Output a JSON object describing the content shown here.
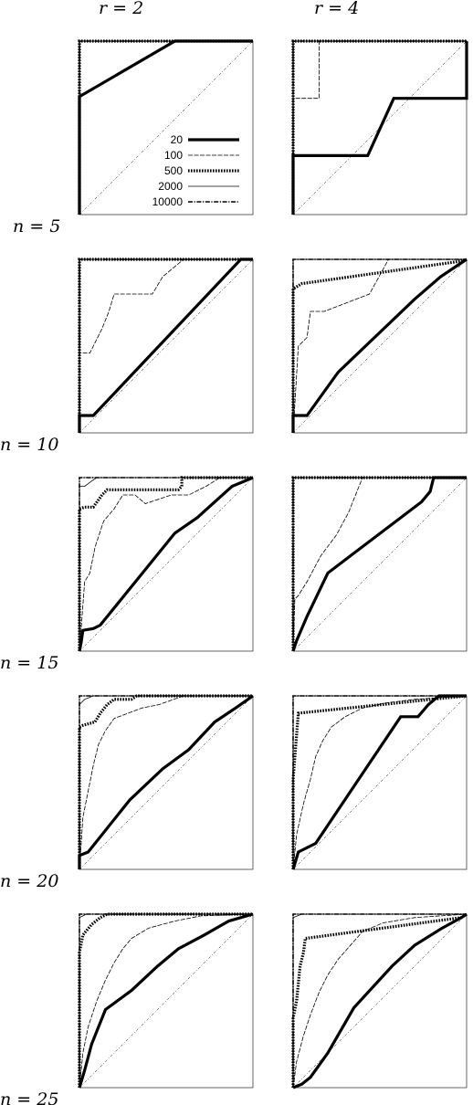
{
  "column_labels": [
    "r = 2",
    "r = 4"
  ],
  "row_labels": [
    "n = 5",
    "n = 10",
    "n = 15",
    "n = 20",
    "n = 25"
  ],
  "legend_entries": [
    {
      "label": "20",
      "style": "thick-solid"
    },
    {
      "label": "100",
      "style": "thin-dashed"
    },
    {
      "label": "500",
      "style": "thick-dotted"
    },
    {
      "label": "2000",
      "style": "thin-solid"
    },
    {
      "label": "10000",
      "style": "dash-dot"
    }
  ],
  "colors": {
    "line": "#000000",
    "background": "#ffffff"
  },
  "chart_data": [
    {
      "type": "line",
      "panel": "r=2,n=5",
      "xlim": [
        0,
        1
      ],
      "ylim": [
        0,
        1
      ],
      "series": [
        {
          "name": "20",
          "x": [
            0,
            0,
            0.55,
            1
          ],
          "y": [
            0,
            0.68,
            1,
            1
          ]
        },
        {
          "name": "100",
          "x": [
            0,
            0,
            1
          ],
          "y": [
            0,
            1,
            1
          ]
        },
        {
          "name": "500",
          "x": [
            0,
            0,
            1
          ],
          "y": [
            0,
            1,
            1
          ]
        },
        {
          "name": "2000",
          "x": [
            0,
            0,
            1
          ],
          "y": [
            0,
            1,
            1
          ]
        },
        {
          "name": "10000",
          "x": [
            0,
            0,
            1
          ],
          "y": [
            0,
            1,
            1
          ]
        }
      ]
    },
    {
      "type": "line",
      "panel": "r=4,n=5",
      "xlim": [
        0,
        1
      ],
      "ylim": [
        0,
        1
      ],
      "series": [
        {
          "name": "20",
          "x": [
            0,
            0,
            0.43,
            0.58,
            1,
            1
          ],
          "y": [
            0,
            0.34,
            0.34,
            0.67,
            0.67,
            1
          ]
        },
        {
          "name": "100",
          "x": [
            0,
            0,
            0.15,
            0.15,
            1
          ],
          "y": [
            0,
            0.67,
            0.67,
            1,
            1
          ]
        },
        {
          "name": "500",
          "x": [
            0,
            0,
            1
          ],
          "y": [
            0,
            1,
            1
          ]
        },
        {
          "name": "2000",
          "x": [
            0,
            0,
            1
          ],
          "y": [
            0,
            1,
            1
          ]
        },
        {
          "name": "10000",
          "x": [
            0,
            0,
            1
          ],
          "y": [
            0,
            1,
            1
          ]
        }
      ]
    },
    {
      "type": "line",
      "panel": "r=2,n=10",
      "xlim": [
        0,
        1
      ],
      "ylim": [
        0,
        1
      ],
      "series": [
        {
          "name": "20",
          "x": [
            0,
            0,
            0.08,
            0.93,
            1
          ],
          "y": [
            0,
            0.1,
            0.1,
            1,
            1
          ]
        },
        {
          "name": "100",
          "x": [
            0,
            0,
            0.06,
            0.08,
            0.13,
            0.17,
            0.2,
            0.42,
            0.48,
            0.6,
            1
          ],
          "y": [
            0,
            0.46,
            0.46,
            0.5,
            0.6,
            0.7,
            0.8,
            0.8,
            0.9,
            1,
            1
          ]
        },
        {
          "name": "500",
          "x": [
            0,
            0,
            1
          ],
          "y": [
            0,
            1,
            1
          ]
        },
        {
          "name": "2000",
          "x": [
            0,
            0,
            1
          ],
          "y": [
            0,
            1,
            1
          ]
        },
        {
          "name": "10000",
          "x": [
            0,
            0,
            1
          ],
          "y": [
            0,
            1,
            1
          ]
        }
      ]
    },
    {
      "type": "line",
      "panel": "r=4,n=10",
      "xlim": [
        0,
        1
      ],
      "ylim": [
        0,
        1
      ],
      "series": [
        {
          "name": "20",
          "x": [
            0,
            0,
            0.08,
            0.26,
            0.7,
            0.85,
            1
          ],
          "y": [
            0,
            0.1,
            0.1,
            0.35,
            0.77,
            0.9,
            1
          ]
        },
        {
          "name": "100",
          "x": [
            0,
            0.03,
            0.08,
            0.1,
            0.18,
            0.44,
            0.55,
            1
          ],
          "y": [
            0,
            0.5,
            0.55,
            0.7,
            0.7,
            0.8,
            1,
            1
          ]
        },
        {
          "name": "500",
          "x": [
            0,
            0,
            0.05,
            0.97,
            1
          ],
          "y": [
            0,
            0.83,
            0.86,
            0.99,
            1
          ]
        },
        {
          "name": "2000",
          "x": [
            0,
            0,
            0.55,
            1
          ],
          "y": [
            0,
            1,
            1,
            1
          ]
        },
        {
          "name": "10000",
          "x": [
            0,
            0,
            1
          ],
          "y": [
            0,
            1,
            1
          ]
        }
      ]
    },
    {
      "type": "line",
      "panel": "r=2,n=15",
      "xlim": [
        0,
        1
      ],
      "ylim": [
        0,
        1
      ],
      "series": [
        {
          "name": "20",
          "x": [
            0,
            0.01,
            0.02,
            0.08,
            0.12,
            0.55,
            0.68,
            0.78,
            0.88,
            1
          ],
          "y": [
            0,
            0.05,
            0.12,
            0.13,
            0.15,
            0.68,
            0.77,
            0.86,
            0.95,
            1
          ]
        },
        {
          "name": "100",
          "x": [
            0,
            0.03,
            0.06,
            0.09,
            0.14,
            0.2,
            0.25,
            0.32,
            0.38,
            0.53,
            0.63,
            0.73,
            0.81,
            1
          ],
          "y": [
            0,
            0.4,
            0.45,
            0.6,
            0.75,
            0.82,
            0.9,
            0.9,
            0.85,
            0.9,
            0.9,
            0.95,
            1,
            1
          ]
        },
        {
          "name": "500",
          "x": [
            0,
            0,
            0.03,
            0.08,
            0.13,
            0.16,
            0.57,
            0.59,
            0.59,
            1
          ],
          "y": [
            0,
            0.82,
            0.83,
            0.83,
            0.9,
            0.93,
            0.93,
            0.95,
            1,
            1
          ]
        },
        {
          "name": "2000",
          "x": [
            0,
            0,
            0.03,
            0.07,
            0.1,
            1
          ],
          "y": [
            0,
            0.95,
            0.95,
            0.98,
            1,
            1
          ]
        },
        {
          "name": "10000",
          "x": [
            0,
            0,
            1
          ],
          "y": [
            0,
            1,
            1
          ]
        }
      ]
    },
    {
      "type": "line",
      "panel": "r=4,n=15",
      "xlim": [
        0,
        1
      ],
      "ylim": [
        0,
        1
      ],
      "series": [
        {
          "name": "20",
          "x": [
            0,
            0.02,
            0.08,
            0.2,
            0.74,
            0.79,
            0.81,
            1
          ],
          "y": [
            0,
            0.06,
            0.2,
            0.45,
            0.86,
            0.92,
            1,
            1
          ]
        },
        {
          "name": "100",
          "x": [
            0,
            0.01,
            0.03,
            0.08,
            0.16,
            0.25,
            0.32,
            0.4,
            1
          ],
          "y": [
            0,
            0.3,
            0.32,
            0.4,
            0.55,
            0.67,
            0.8,
            1,
            1
          ]
        },
        {
          "name": "500",
          "x": [
            0,
            0,
            1
          ],
          "y": [
            0,
            1,
            1
          ]
        },
        {
          "name": "2000",
          "x": [
            0,
            0,
            1
          ],
          "y": [
            0,
            1,
            1
          ]
        },
        {
          "name": "10000",
          "x": [
            0,
            0,
            1
          ],
          "y": [
            0,
            1,
            1
          ]
        }
      ]
    },
    {
      "type": "line",
      "panel": "r=2,n=20",
      "xlim": [
        0,
        1
      ],
      "ylim": [
        0,
        1
      ],
      "series": [
        {
          "name": "20",
          "x": [
            0,
            0,
            0.05,
            0.29,
            0.48,
            0.63,
            0.78,
            0.9,
            1
          ],
          "y": [
            0,
            0.08,
            0.1,
            0.4,
            0.58,
            0.69,
            0.85,
            0.93,
            1
          ]
        },
        {
          "name": "100",
          "x": [
            0,
            0.02,
            0.05,
            0.08,
            0.11,
            0.15,
            0.2,
            0.28,
            0.36,
            0.46,
            0.6,
            1
          ],
          "y": [
            0,
            0.3,
            0.45,
            0.6,
            0.72,
            0.8,
            0.87,
            0.9,
            0.93,
            0.95,
            1,
            1
          ]
        },
        {
          "name": "500",
          "x": [
            0,
            0,
            0.02,
            0.09,
            0.12,
            0.16,
            0.2,
            0.3,
            0.33,
            1
          ],
          "y": [
            0,
            0.82,
            0.83,
            0.85,
            0.9,
            0.95,
            0.98,
            0.98,
            1,
            1
          ]
        },
        {
          "name": "2000",
          "x": [
            0,
            0,
            0.03,
            0.08,
            1
          ],
          "y": [
            0,
            0.95,
            0.98,
            1,
            1
          ]
        },
        {
          "name": "10000",
          "x": [
            0,
            0,
            1
          ],
          "y": [
            0,
            1,
            1
          ]
        }
      ]
    },
    {
      "type": "line",
      "panel": "r=4,n=20",
      "xlim": [
        0,
        1
      ],
      "ylim": [
        0,
        1
      ],
      "series": [
        {
          "name": "20",
          "x": [
            0,
            0.03,
            0.13,
            0.62,
            0.72,
            0.78,
            0.84,
            1
          ],
          "y": [
            0,
            0.1,
            0.15,
            0.88,
            0.88,
            0.95,
            1,
            1
          ]
        },
        {
          "name": "100",
          "x": [
            0,
            0.02,
            0.06,
            0.1,
            0.13,
            0.17,
            0.22,
            0.3,
            0.4,
            0.54,
            0.7,
            1
          ],
          "y": [
            0,
            0.2,
            0.38,
            0.52,
            0.65,
            0.74,
            0.82,
            0.88,
            0.93,
            0.96,
            0.98,
            1
          ]
        },
        {
          "name": "500",
          "x": [
            0,
            0,
            0.03,
            0.8,
            1
          ],
          "y": [
            0,
            0.52,
            0.9,
            0.98,
            1
          ]
        },
        {
          "name": "2000",
          "x": [
            0,
            0,
            1
          ],
          "y": [
            0,
            1,
            1
          ]
        },
        {
          "name": "10000",
          "x": [
            0,
            0,
            1
          ],
          "y": [
            0,
            1,
            1
          ]
        }
      ]
    },
    {
      "type": "line",
      "panel": "r=2,n=25",
      "xlim": [
        0,
        1
      ],
      "ylim": [
        0,
        1
      ],
      "series": [
        {
          "name": "20",
          "x": [
            0,
            0.03,
            0.07,
            0.15,
            0.3,
            0.45,
            0.57,
            0.72,
            0.86,
            1
          ],
          "y": [
            0,
            0.1,
            0.25,
            0.45,
            0.56,
            0.7,
            0.8,
            0.88,
            0.96,
            1
          ]
        },
        {
          "name": "100",
          "x": [
            0,
            0.02,
            0.05,
            0.1,
            0.15,
            0.2,
            0.25,
            0.3,
            0.4,
            0.55,
            0.7,
            1
          ],
          "y": [
            0,
            0.2,
            0.35,
            0.5,
            0.62,
            0.72,
            0.8,
            0.86,
            0.92,
            0.96,
            0.99,
            1
          ]
        },
        {
          "name": "500",
          "x": [
            0,
            0,
            0.02,
            0.07,
            0.12,
            0.16,
            1
          ],
          "y": [
            0,
            0.78,
            0.88,
            0.94,
            0.98,
            1,
            1
          ]
        },
        {
          "name": "2000",
          "x": [
            0,
            0,
            0.04,
            1
          ],
          "y": [
            0,
            0.98,
            1,
            1
          ]
        },
        {
          "name": "10000",
          "x": [
            0,
            0,
            1
          ],
          "y": [
            0,
            1,
            1
          ]
        }
      ]
    },
    {
      "type": "line",
      "panel": "r=4,n=25",
      "xlim": [
        0,
        1
      ],
      "ylim": [
        0,
        1
      ],
      "series": [
        {
          "name": "20",
          "x": [
            0,
            0.05,
            0.1,
            0.2,
            0.35,
            0.57,
            0.7,
            0.86,
            0.97,
            1
          ],
          "y": [
            0,
            0.02,
            0.06,
            0.2,
            0.46,
            0.7,
            0.82,
            0.92,
            0.98,
            1
          ]
        },
        {
          "name": "100",
          "x": [
            0,
            0.02,
            0.06,
            0.1,
            0.15,
            0.2,
            0.26,
            0.33,
            0.4,
            0.52,
            0.7,
            1
          ],
          "y": [
            0,
            0.15,
            0.3,
            0.42,
            0.55,
            0.65,
            0.74,
            0.82,
            0.9,
            0.95,
            0.98,
            1
          ]
        },
        {
          "name": "500",
          "x": [
            0,
            0,
            0.02,
            0.03,
            0.04,
            0.06,
            0.07,
            0.97,
            1
          ],
          "y": [
            0,
            0.4,
            0.5,
            0.6,
            0.7,
            0.78,
            0.86,
            0.98,
            1
          ]
        },
        {
          "name": "2000",
          "x": [
            0,
            0,
            0.05,
            1
          ],
          "y": [
            0,
            0.98,
            1,
            1
          ]
        },
        {
          "name": "10000",
          "x": [
            0,
            0,
            1
          ],
          "y": [
            0,
            1,
            1
          ]
        }
      ]
    }
  ]
}
